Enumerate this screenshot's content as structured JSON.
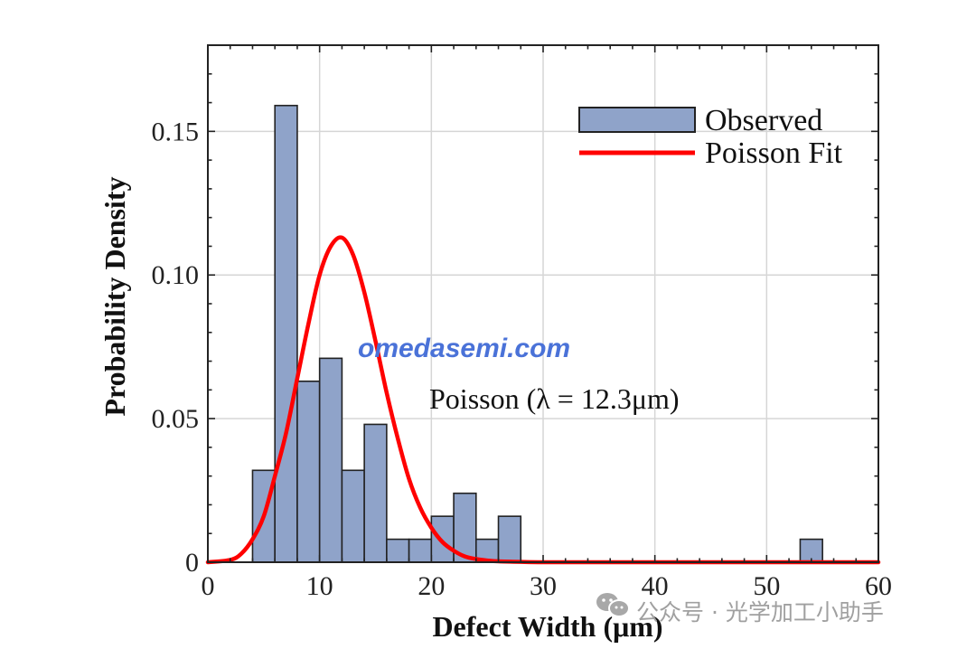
{
  "chart_data": {
    "type": "bar",
    "xlabel": "Defect Width (μm)",
    "ylabel": "Probability Density",
    "xlim": [
      0,
      60
    ],
    "ylim": [
      0,
      0.18
    ],
    "xticks": [
      "0",
      "10",
      "20",
      "30",
      "40",
      "50",
      "60"
    ],
    "yticks": [
      "0",
      "0.05",
      "0.10",
      "0.15"
    ],
    "grid": true,
    "legend_position": "top-right",
    "series": [
      {
        "name": "Observed",
        "type": "histogram",
        "bin_width": 2,
        "bins": [
          {
            "x0": 4,
            "x1": 6,
            "value": 0.032
          },
          {
            "x0": 6,
            "x1": 8,
            "value": 0.159
          },
          {
            "x0": 8,
            "x1": 10,
            "value": 0.063
          },
          {
            "x0": 10,
            "x1": 12,
            "value": 0.071
          },
          {
            "x0": 12,
            "x1": 14,
            "value": 0.032
          },
          {
            "x0": 14,
            "x1": 16,
            "value": 0.048
          },
          {
            "x0": 16,
            "x1": 18,
            "value": 0.008
          },
          {
            "x0": 18,
            "x1": 20,
            "value": 0.008
          },
          {
            "x0": 20,
            "x1": 22,
            "value": 0.016
          },
          {
            "x0": 22,
            "x1": 24,
            "value": 0.024
          },
          {
            "x0": 24,
            "x1": 26,
            "value": 0.008
          },
          {
            "x0": 26,
            "x1": 28,
            "value": 0.016
          },
          {
            "x0": 53,
            "x1": 55,
            "value": 0.008
          }
        ],
        "color": "#8fa3c9"
      },
      {
        "name": "Poisson Fit",
        "type": "line",
        "lambda": 12.3,
        "color": "#ff0000",
        "x": [
          0,
          2,
          3,
          4,
          5,
          6,
          7,
          8,
          9,
          10,
          11,
          12,
          13,
          14,
          15,
          16,
          17,
          18,
          19,
          20,
          21,
          22,
          23,
          24,
          25,
          26,
          28,
          30,
          35,
          40,
          50,
          60
        ],
        "y": [
          0.0,
          0.0008,
          0.003,
          0.008,
          0.016,
          0.03,
          0.045,
          0.064,
          0.083,
          0.1,
          0.11,
          0.113,
          0.107,
          0.094,
          0.077,
          0.059,
          0.043,
          0.029,
          0.019,
          0.012,
          0.007,
          0.004,
          0.002,
          0.0011,
          0.0006,
          0.0003,
          0.0001,
          0.0,
          0.0,
          0.0,
          0.0,
          0.0
        ]
      }
    ],
    "annotations": [
      {
        "text": "Poisson (λ = 12.3μm)"
      }
    ]
  },
  "watermark": {
    "text": "omedasemi.com",
    "color": "#4a72d8"
  },
  "credit": {
    "text": "公众号 · 光学加工小助手"
  }
}
